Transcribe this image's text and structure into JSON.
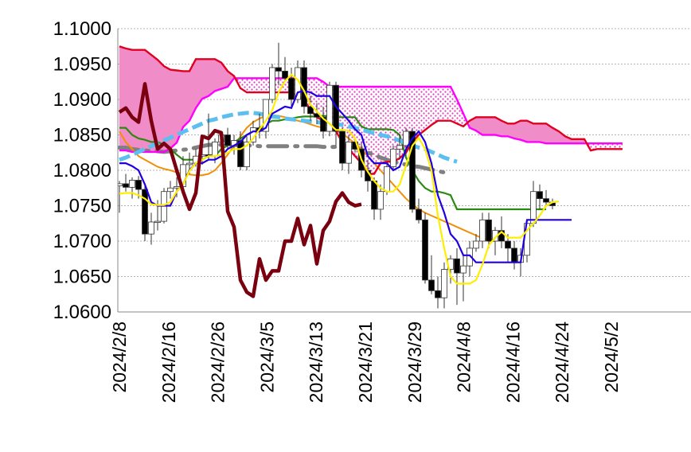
{
  "chart_data": {
    "type": "line",
    "title": "",
    "xlabel": "",
    "ylabel": "",
    "ylim": [
      1.06,
      1.1
    ],
    "y_ticks": [
      "1.1000",
      "1.0950",
      "1.0900",
      "1.0850",
      "1.0800",
      "1.0750",
      "1.0700",
      "1.0650",
      "1.0600"
    ],
    "x_tick_labels": [
      "2024/2/8",
      "2024/2/16",
      "2024/2/26",
      "2024/3/5",
      "2024/3/13",
      "2024/3/21",
      "2024/3/29",
      "2024/4/8",
      "2024/4/16",
      "2024/4/24",
      "2024/5/2"
    ],
    "x_count": 80,
    "grid": "horizontal-dotted",
    "colors": {
      "kumo_bear_fill": "#f08cc8",
      "kumo_bull_dots": "#e040c0",
      "span_a": "#e00020",
      "span_b": "#ff00ff",
      "candle_bear": "#000000",
      "candle_bull": "#ffffff",
      "tenkan": "#ffee00",
      "kijun": "#2000e0",
      "line_green": "#2a8a10",
      "line_orange": "#f0900a",
      "lagging": "#7a0010",
      "gray_dashdot": "#808080",
      "blue_dashed": "#5cbff0"
    },
    "candles": [
      [
        1.0778,
        1.0785,
        1.074,
        1.0781
      ],
      [
        1.0781,
        1.0795,
        1.077,
        1.0776
      ],
      [
        1.0776,
        1.079,
        1.076,
        1.0786
      ],
      [
        1.0786,
        1.0792,
        1.076,
        1.0773
      ],
      [
        1.0773,
        1.0778,
        1.07,
        1.071
      ],
      [
        1.071,
        1.074,
        1.0695,
        1.0727
      ],
      [
        1.0727,
        1.0758,
        1.0715,
        1.0728
      ],
      [
        1.0728,
        1.0775,
        1.0725,
        1.077
      ],
      [
        1.077,
        1.0785,
        1.076,
        1.0775
      ],
      [
        1.0775,
        1.079,
        1.0762,
        1.0777
      ],
      [
        1.0777,
        1.082,
        1.077,
        1.0808
      ],
      [
        1.0808,
        1.0825,
        1.0795,
        1.081
      ],
      [
        1.081,
        1.083,
        1.0805,
        1.082
      ],
      [
        1.082,
        1.084,
        1.0808,
        1.0822
      ],
      [
        1.0822,
        1.088,
        1.0815,
        1.082
      ],
      [
        1.082,
        1.0845,
        1.081,
        1.084
      ],
      [
        1.084,
        1.0855,
        1.0825,
        1.085
      ],
      [
        1.085,
        1.086,
        1.083,
        1.0835
      ],
      [
        1.0835,
        1.085,
        1.0822,
        1.0842
      ],
      [
        1.0842,
        1.0855,
        1.08,
        1.0805
      ],
      [
        1.0805,
        1.0848,
        1.08,
        1.084
      ],
      [
        1.084,
        1.087,
        1.0835,
        1.086
      ],
      [
        1.086,
        1.088,
        1.0845,
        1.0855
      ],
      [
        1.0855,
        1.09,
        1.0845,
        1.09
      ],
      [
        1.09,
        1.095,
        1.0895,
        1.0945
      ],
      [
        1.0945,
        1.098,
        1.092,
        1.094
      ],
      [
        1.094,
        1.096,
        1.0925,
        1.093
      ],
      [
        1.093,
        1.0945,
        1.089,
        1.09
      ],
      [
        1.09,
        1.0955,
        1.0895,
        1.0945
      ],
      [
        1.0945,
        1.0955,
        1.088,
        1.089
      ],
      [
        1.089,
        1.0905,
        1.087,
        1.088
      ],
      [
        1.088,
        1.0895,
        1.0865,
        1.0875
      ],
      [
        1.0875,
        1.089,
        1.0845,
        1.0855
      ],
      [
        1.0855,
        1.0925,
        1.0848,
        1.092
      ],
      [
        1.092,
        1.0925,
        1.0835,
        1.0855
      ],
      [
        1.0855,
        1.086,
        1.08,
        1.081
      ],
      [
        1.081,
        1.085,
        1.0795,
        1.084
      ],
      [
        1.084,
        1.0845,
        1.0825,
        1.083
      ],
      [
        1.083,
        1.084,
        1.079,
        1.08
      ],
      [
        1.08,
        1.0815,
        1.077,
        1.0785
      ],
      [
        1.0785,
        1.079,
        1.073,
        1.0745
      ],
      [
        1.0745,
        1.078,
        1.073,
        1.077
      ],
      [
        1.077,
        1.081,
        1.0765,
        1.0805
      ],
      [
        1.0805,
        1.0835,
        1.08,
        1.083
      ],
      [
        1.083,
        1.085,
        1.0815,
        1.0835
      ],
      [
        1.0835,
        1.086,
        1.082,
        1.0855
      ],
      [
        1.0855,
        1.086,
        1.074,
        1.0745
      ],
      [
        1.0745,
        1.076,
        1.0725,
        1.073
      ],
      [
        1.073,
        1.074,
        1.064,
        1.0645
      ],
      [
        1.0645,
        1.068,
        1.0625,
        1.063
      ],
      [
        1.063,
        1.065,
        1.0605,
        1.062
      ],
      [
        1.062,
        1.067,
        1.0605,
        1.066
      ],
      [
        1.066,
        1.068,
        1.064,
        1.0675
      ],
      [
        1.0675,
        1.069,
        1.061,
        1.0655
      ],
      [
        1.0655,
        1.068,
        1.0615,
        1.0665
      ],
      [
        1.0665,
        1.07,
        1.065,
        1.069
      ],
      [
        1.069,
        1.071,
        1.0685,
        1.07
      ],
      [
        1.07,
        1.074,
        1.069,
        1.073
      ],
      [
        1.073,
        1.074,
        1.069,
        1.07
      ],
      [
        1.07,
        1.072,
        1.068,
        1.0715
      ],
      [
        1.0715,
        1.0735,
        1.069,
        1.07
      ],
      [
        1.07,
        1.071,
        1.067,
        1.069
      ],
      [
        1.069,
        1.07,
        1.066,
        1.067
      ],
      [
        1.067,
        1.069,
        1.065,
        1.068
      ],
      [
        1.068,
        1.073,
        1.067,
        1.0725
      ],
      [
        1.0725,
        1.0785,
        1.072,
        1.077
      ],
      [
        1.077,
        1.078,
        1.0745,
        1.076
      ],
      [
        1.076,
        1.0772,
        1.0748,
        1.0755
      ],
      [
        1.0755,
        1.076,
        1.0745,
        1.075
      ]
    ],
    "series": [
      {
        "key": "span_a",
        "values": [
          1.0975,
          1.0972,
          1.097,
          1.097,
          1.097,
          1.0963,
          1.0956,
          1.0947,
          1.0942,
          1.0941,
          1.094,
          1.094,
          1.0957,
          1.0957,
          1.0957,
          1.0957,
          1.0952,
          1.094,
          1.0933,
          1.0916,
          1.091,
          1.091,
          1.091,
          1.091,
          1.091,
          1.091,
          1.091,
          1.091,
          1.0905,
          1.09,
          1.0885,
          1.0875,
          1.087,
          1.086,
          1.0855,
          1.084,
          1.083,
          1.082,
          1.081,
          1.0795,
          1.0795,
          1.081,
          1.0812,
          1.0812,
          1.0817,
          1.0825,
          1.084,
          1.085,
          1.0857,
          1.0864,
          1.087,
          1.087,
          1.087,
          1.0866,
          1.0862,
          1.087,
          1.0875,
          1.0875,
          1.0875,
          1.0875,
          1.087,
          1.0866,
          1.0866,
          1.087,
          1.087,
          1.0866,
          1.0866,
          1.0866,
          1.086,
          1.0855,
          1.0848,
          1.0844,
          1.0844,
          1.0844,
          1.0828,
          1.083,
          1.083,
          1.083,
          1.083,
          1.083
        ]
      },
      {
        "key": "span_b",
        "values": [
          1.0828,
          1.0828,
          1.0826,
          1.0826,
          1.0826,
          1.0826,
          1.0826,
          1.0826,
          1.0831,
          1.0839,
          1.0861,
          1.087,
          1.0888,
          1.0901,
          1.0905,
          1.0912,
          1.0915,
          1.0918,
          1.093,
          1.093,
          1.093,
          1.093,
          1.093,
          1.093,
          1.093,
          1.093,
          1.093,
          1.093,
          1.093,
          1.093,
          1.093,
          1.093,
          1.0925,
          1.0918,
          1.0918,
          1.0918,
          1.0918,
          1.0918,
          1.0918,
          1.0918,
          1.0918,
          1.0918,
          1.0918,
          1.0918,
          1.0918,
          1.0918,
          1.0918,
          1.0918,
          1.0918,
          1.0918,
          1.0918,
          1.0918,
          1.0918,
          1.09,
          1.088,
          1.086,
          1.0856,
          1.085,
          1.085,
          1.085,
          1.0848,
          1.0848,
          1.0845,
          1.0843,
          1.084,
          1.084,
          1.084,
          1.0838,
          1.0838,
          1.0838,
          1.0838,
          1.0838,
          1.0838,
          1.0838,
          1.0838,
          1.0838,
          1.0838,
          1.0838,
          1.0838,
          1.0838
        ]
      },
      {
        "key": "tenkan",
        "values": [
          1.0767,
          1.0768,
          1.0768,
          1.0765,
          1.076,
          1.0752,
          1.0751,
          1.0751,
          1.0755,
          1.077,
          1.078,
          1.0799,
          1.081,
          1.0815,
          1.082,
          1.082,
          1.0822,
          1.0825,
          1.083,
          1.083,
          1.0835,
          1.0845,
          1.0858,
          1.087,
          1.0885,
          1.091,
          1.0926,
          1.0935,
          1.0928,
          1.0912,
          1.0893,
          1.0883,
          1.0873,
          1.0866,
          1.0857,
          1.0857,
          1.0856,
          1.0845,
          1.0815,
          1.0798,
          1.0785,
          1.0775,
          1.077,
          1.077,
          1.078,
          1.0807,
          1.0835,
          1.0846,
          1.083,
          1.08,
          1.0736,
          1.069,
          1.065,
          1.064,
          1.064,
          1.064,
          1.0645,
          1.0667,
          1.0694,
          1.0705,
          1.0713,
          1.0705,
          1.0705,
          1.0705,
          1.0715,
          1.0725,
          1.0736,
          1.075,
          1.0755,
          1.0756
        ]
      },
      {
        "key": "kijun",
        "values": [
          1.081,
          1.081,
          1.0806,
          1.08,
          1.078,
          1.0755,
          1.075,
          1.075,
          1.075,
          1.077,
          1.078,
          1.08,
          1.081,
          1.081,
          1.0815,
          1.0815,
          1.082,
          1.083,
          1.0835,
          1.084,
          1.085,
          1.0855,
          1.0855,
          1.086,
          1.088,
          1.0885,
          1.089,
          1.0888,
          1.091,
          1.0912,
          1.091,
          1.0905,
          1.0905,
          1.0905,
          1.089,
          1.088,
          1.087,
          1.0858,
          1.085,
          1.082,
          1.081,
          1.081,
          1.081,
          1.08,
          1.0805,
          1.083,
          1.0845,
          1.0855,
          1.084,
          1.081,
          1.0765,
          1.074,
          1.071,
          1.07,
          1.068,
          1.068,
          1.067,
          1.067,
          1.067,
          1.067,
          1.067,
          1.067,
          1.067,
          1.067,
          1.073,
          1.073,
          1.073,
          1.073,
          1.073,
          1.073,
          1.073,
          1.073
        ]
      },
      {
        "key": "line_green",
        "values": [
          1.086,
          1.086,
          1.085,
          1.0845,
          1.0843,
          1.084,
          1.084,
          1.0836,
          1.083,
          1.0822,
          1.0815,
          1.0815,
          1.0815,
          1.0815,
          1.082,
          1.082,
          1.083,
          1.0835,
          1.084,
          1.0845,
          1.085,
          1.0855,
          1.086,
          1.0865,
          1.087,
          1.087,
          1.0872,
          1.0873,
          1.0875,
          1.0876,
          1.0876,
          1.0876,
          1.0877,
          1.0876,
          1.0875,
          1.0875,
          1.0875,
          1.0875,
          1.0862,
          1.0858,
          1.0858,
          1.0858,
          1.0858,
          1.0857,
          1.085,
          1.0818,
          1.08,
          1.0785,
          1.0775,
          1.077,
          1.077,
          1.0768,
          1.0765,
          1.0745,
          1.0745,
          1.0745,
          1.0745,
          1.0745,
          1.0745,
          1.0745,
          1.0745,
          1.0745,
          1.0745,
          1.0745,
          1.0745,
          1.0745,
          1.0745,
          1.0745
        ]
      },
      {
        "key": "line_orange",
        "values": [
          1.0855,
          1.084,
          1.083,
          1.082,
          1.0815,
          1.081,
          1.0805,
          1.0802,
          1.08,
          1.0797,
          1.0795,
          1.0794,
          1.0793,
          1.0793,
          1.0795,
          1.08,
          1.081,
          1.0822,
          1.0835,
          1.0848,
          1.086,
          1.0868,
          1.0873,
          1.0877,
          1.0878,
          1.0877,
          1.0875,
          1.0873,
          1.087,
          1.0868,
          1.0865,
          1.0862,
          1.086,
          1.0858,
          1.0856,
          1.0852,
          1.0845,
          1.0838,
          1.083,
          1.082,
          1.081,
          1.08,
          1.079,
          1.078,
          1.077,
          1.076,
          1.0752,
          1.0745,
          1.074,
          1.0736,
          1.0732,
          1.0728,
          1.0724,
          1.072,
          1.0716,
          1.0712,
          1.0708,
          1.0704,
          1.07,
          1.07
        ]
      },
      {
        "key": "lagging",
        "values": [
          1.0882,
          1.0888,
          1.0875,
          1.0868,
          1.0922,
          1.087,
          1.083,
          1.0838,
          1.083,
          1.08,
          1.077,
          1.0745,
          1.0768,
          1.0848,
          1.0845,
          1.0856,
          1.0853,
          1.0742,
          1.072,
          1.0645,
          1.0628,
          1.0622,
          1.0675,
          1.0645,
          1.0658,
          1.0658,
          1.07,
          1.07,
          1.0732,
          1.0695,
          1.0722,
          1.0668,
          1.0715,
          1.0728,
          1.0756,
          1.0768,
          1.0755,
          1.075,
          1.0752
        ]
      },
      {
        "key": "gray_dashdot",
        "values": [
          1.0832,
          1.0832,
          1.083,
          1.0829,
          1.0828,
          1.0827,
          1.0827,
          1.0826,
          1.0827,
          1.0828,
          1.0829,
          1.083,
          1.0832,
          1.0834,
          1.0836,
          1.0836,
          1.0836,
          1.0836,
          1.0836,
          1.0835,
          1.0835,
          1.0835,
          1.0834,
          1.0834,
          1.0834,
          1.0834,
          1.0834,
          1.0834,
          1.0834,
          1.0834,
          1.0834,
          1.0834,
          1.0833,
          1.0833,
          1.0833,
          1.0833,
          1.0832,
          1.0832,
          1.083,
          1.0825,
          1.0822,
          1.0818,
          1.0815,
          1.0812,
          1.081,
          1.0808,
          1.0806,
          1.0805,
          1.0803,
          1.0801,
          1.0799,
          1.0797
        ]
      },
      {
        "key": "blue_dashed",
        "values": [
          1.0815,
          1.0818,
          1.0822,
          1.0826,
          1.083,
          1.0834,
          1.0838,
          1.0842,
          1.0846,
          1.085,
          1.0854,
          1.0858,
          1.0862,
          1.0866,
          1.087,
          1.0872,
          1.0875,
          1.0877,
          1.0879,
          1.088,
          1.0881,
          1.0881,
          1.088,
          1.0878,
          1.0876,
          1.0875,
          1.0873,
          1.0872,
          1.0871,
          1.087,
          1.0869,
          1.0868,
          1.0867,
          1.0866,
          1.0865,
          1.0864,
          1.0862,
          1.086,
          1.0857,
          1.0855,
          1.0852,
          1.085,
          1.0848,
          1.0845,
          1.0842,
          1.0838,
          1.0835,
          1.0832,
          1.083,
          1.0826,
          1.0822,
          1.0818,
          1.0815,
          1.0812
        ]
      }
    ]
  }
}
